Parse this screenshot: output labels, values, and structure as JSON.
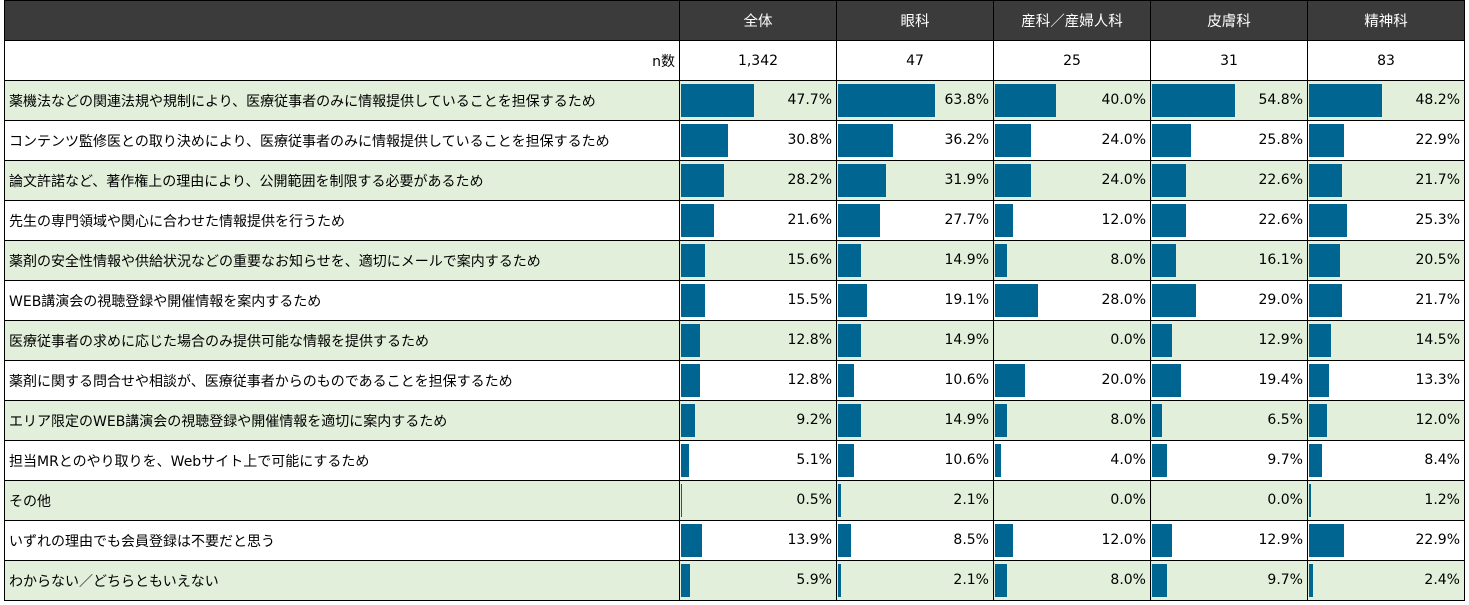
{
  "columns": [
    "全体",
    "眼科",
    "産科／産婦人科",
    "皮膚科",
    "精神科"
  ],
  "n_label": "n数",
  "n_values": [
    "1,342",
    "47",
    "25",
    "31",
    "83"
  ],
  "colors": {
    "bar": "#006591",
    "header": "#3b3b3b",
    "stripe": "#e2efda"
  },
  "rows": [
    {
      "label": "薬機法などの関連法規や規制により、医療従事者のみに情報提供していることを担保するため",
      "values": [
        47.7,
        63.8,
        40.0,
        54.8,
        48.2
      ],
      "display": [
        "47.7%",
        "63.8%",
        "40.0%",
        "54.8%",
        "48.2%"
      ]
    },
    {
      "label": "コンテンツ監修医との取り決めにより、医療従事者のみに情報提供していることを担保するため",
      "values": [
        30.8,
        36.2,
        24.0,
        25.8,
        22.9
      ],
      "display": [
        "30.8%",
        "36.2%",
        "24.0%",
        "25.8%",
        "22.9%"
      ]
    },
    {
      "label": "論文許諾など、著作権上の理由により、公開範囲を制限する必要があるため",
      "values": [
        28.2,
        31.9,
        24.0,
        22.6,
        21.7
      ],
      "display": [
        "28.2%",
        "31.9%",
        "24.0%",
        "22.6%",
        "21.7%"
      ]
    },
    {
      "label": "先生の専門領域や関心に合わせた情報提供を行うため",
      "values": [
        21.6,
        27.7,
        12.0,
        22.6,
        25.3
      ],
      "display": [
        "21.6%",
        "27.7%",
        "12.0%",
        "22.6%",
        "25.3%"
      ]
    },
    {
      "label": "薬剤の安全性情報や供給状況などの重要なお知らせを、適切にメールで案内するため",
      "values": [
        15.6,
        14.9,
        8.0,
        16.1,
        20.5
      ],
      "display": [
        "15.6%",
        "14.9%",
        "8.0%",
        "16.1%",
        "20.5%"
      ]
    },
    {
      "label": "WEB講演会の視聴登録や開催情報を案内するため",
      "values": [
        15.5,
        19.1,
        28.0,
        29.0,
        21.7
      ],
      "display": [
        "15.5%",
        "19.1%",
        "28.0%",
        "29.0%",
        "21.7%"
      ]
    },
    {
      "label": "医療従事者の求めに応じた場合のみ提供可能な情報を提供するため",
      "values": [
        12.8,
        14.9,
        0.0,
        12.9,
        14.5
      ],
      "display": [
        "12.8%",
        "14.9%",
        "0.0%",
        "12.9%",
        "14.5%"
      ]
    },
    {
      "label": "薬剤に関する問合せや相談が、医療従事者からのものであることを担保するため",
      "values": [
        12.8,
        10.6,
        20.0,
        19.4,
        13.3
      ],
      "display": [
        "12.8%",
        "10.6%",
        "20.0%",
        "19.4%",
        "13.3%"
      ]
    },
    {
      "label": "エリア限定のWEB講演会の視聴登録や開催情報を適切に案内するため",
      "values": [
        9.2,
        14.9,
        8.0,
        6.5,
        12.0
      ],
      "display": [
        "9.2%",
        "14.9%",
        "8.0%",
        "6.5%",
        "12.0%"
      ]
    },
    {
      "label": "担当MRとのやり取りを、Webサイト上で可能にするため",
      "values": [
        5.1,
        10.6,
        4.0,
        9.7,
        8.4
      ],
      "display": [
        "5.1%",
        "10.6%",
        "4.0%",
        "9.7%",
        "8.4%"
      ]
    },
    {
      "label": "その他",
      "values": [
        0.5,
        2.1,
        0.0,
        0.0,
        1.2
      ],
      "display": [
        "0.5%",
        "2.1%",
        "0.0%",
        "0.0%",
        "1.2%"
      ]
    },
    {
      "label": "いずれの理由でも会員登録は不要だと思う",
      "values": [
        13.9,
        8.5,
        12.0,
        12.9,
        22.9
      ],
      "display": [
        "13.9%",
        "8.5%",
        "12.0%",
        "12.9%",
        "22.9%"
      ]
    },
    {
      "label": "わからない／どちらともいえない",
      "values": [
        5.9,
        2.1,
        8.0,
        9.7,
        2.4
      ],
      "display": [
        "5.9%",
        "2.1%",
        "8.0%",
        "9.7%",
        "2.4%"
      ]
    }
  ]
}
